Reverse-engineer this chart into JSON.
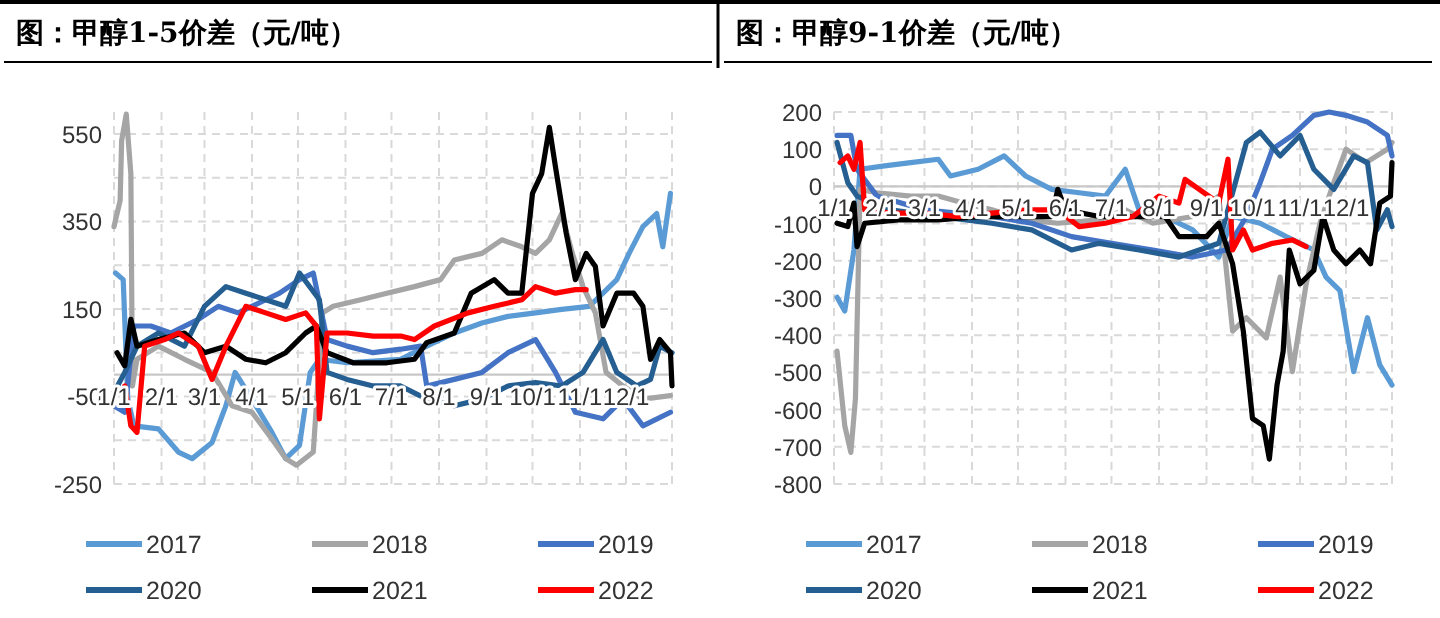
{
  "chart_data": [
    {
      "type": "line",
      "title": "图：甲醇1-5价差（元/吨）",
      "xlim": [
        "--01-01",
        "--12-31"
      ],
      "xticks": [
        {
          "value": "--01-01",
          "label": "1/1"
        },
        {
          "value": "--02-01",
          "label": "2/1"
        },
        {
          "value": "--03-01",
          "label": "3/1"
        },
        {
          "value": "--04-01",
          "label": "4/1"
        },
        {
          "value": "--05-01",
          "label": "5/1"
        },
        {
          "value": "--06-01",
          "label": "6/1"
        },
        {
          "value": "--07-01",
          "label": "7/1"
        },
        {
          "value": "--08-01",
          "label": "8/1"
        },
        {
          "value": "--09-01",
          "label": "9/1"
        },
        {
          "value": "--10-01",
          "label": "10/1"
        },
        {
          "value": "--11-01",
          "label": "11/1"
        },
        {
          "value": "--12-01",
          "label": "12/1"
        }
      ],
      "ylim": [
        -250,
        600
      ],
      "yticks": [
        -250,
        {
          "value": -150,
          "label": null
        },
        -50,
        {
          "value": 50,
          "label": null
        },
        150,
        {
          "value": 250,
          "label": null
        },
        350,
        {
          "value": 450,
          "label": null
        },
        550
      ],
      "grid": true,
      "legend": "bottom",
      "series": [
        {
          "name": "2017",
          "color": "#5b9bd5",
          "x": [
            "--01-02",
            "--01-07",
            "--01-10",
            "--01-14",
            "--01-30",
            "--02-12",
            "--02-21",
            "--03-06",
            "--03-15",
            "--03-21",
            "--04-01",
            "--04-14",
            "--04-23",
            "--05-02",
            "--05-09",
            "--05-15",
            "--06-02",
            "--07-07",
            "--07-24",
            "--08-11",
            "--08-29",
            "--09-15",
            "--10-03",
            "--10-20",
            "--11-07",
            "--11-16",
            "--11-25",
            "--12-03",
            "--12-12",
            "--12-21",
            "--12-25",
            "--12-30"
          ],
          "values": [
            232,
            217,
            -56,
            -117,
            -124,
            -177,
            -192,
            -155,
            -71,
            5,
            -56,
            -132,
            -192,
            -162,
            5,
            35,
            27,
            35,
            65,
            95,
            118,
            133,
            141,
            149,
            156,
            186,
            217,
            277,
            338,
            368,
            292,
            414
          ]
        },
        {
          "name": "2018",
          "color": "#a5a5a5",
          "x": [
            "--01-01",
            "--01-05",
            "--01-06",
            "--01-09",
            "--01-12",
            "--01-13",
            "--01-16",
            "--01-30",
            "--02-16",
            "--03-06",
            "--03-19",
            "--04-01",
            "--04-14",
            "--04-23",
            "--04-30",
            "--05-11",
            "--05-17",
            "--05-24",
            "--06-11",
            "--06-28",
            "--07-16",
            "--08-02",
            "--08-11",
            "--08-29",
            "--09-11",
            "--09-24",
            "--10-03",
            "--10-12",
            "--10-20",
            "--10-27",
            "--11-03",
            "--11-11",
            "--11-18",
            "--11-29",
            "--12-12",
            "--12-30"
          ],
          "values": [
            338,
            398,
            535,
            595,
            459,
            -26,
            35,
            65,
            35,
            5,
            -71,
            -86,
            -147,
            -192,
            -207,
            -177,
            141,
            156,
            171,
            186,
            201,
            217,
            262,
            277,
            308,
            292,
            277,
            308,
            368,
            277,
            201,
            141,
            5,
            -26,
            -56,
            -48
          ]
        },
        {
          "name": "2019",
          "color": "#4472c4",
          "x": [
            "--01-01",
            "--01-08",
            "--01-14",
            "--01-25",
            "--02-07",
            "--02-25",
            "--03-10",
            "--03-23",
            "--04-10",
            "--04-19",
            "--05-02",
            "--05-11",
            "--05-20",
            "--06-02",
            "--06-19",
            "--07-07",
            "--07-20",
            "--07-24",
            "--08-11",
            "--08-29",
            "--09-15",
            "--10-03",
            "--10-16",
            "--10-29",
            "--11-16",
            "--11-29",
            "--12-12",
            "--12-30"
          ],
          "values": [
            -71,
            -86,
            111,
            111,
            95,
            126,
            156,
            141,
            171,
            186,
            217,
            232,
            80,
            65,
            50,
            58,
            65,
            -26,
            -11,
            5,
            50,
            80,
            5,
            -86,
            -101,
            -56,
            -117,
            -86
          ]
        },
        {
          "name": "2020",
          "color": "#255e91",
          "x": [
            "--01-01",
            "--01-08",
            "--01-16",
            "--01-30",
            "--02-16",
            "--03-01",
            "--03-15",
            "--03-28",
            "--04-10",
            "--04-23",
            "--05-02",
            "--05-15",
            "--05-20",
            "--06-02",
            "--06-19",
            "--07-07",
            "--07-24",
            "--08-11",
            "--08-29",
            "--09-15",
            "--10-03",
            "--10-20",
            "--11-03",
            "--11-16",
            "--11-25",
            "--12-08",
            "--12-17",
            "--12-23",
            "--12-31"
          ],
          "values": [
            -41,
            5,
            65,
            95,
            65,
            156,
            201,
            186,
            171,
            156,
            232,
            171,
            5,
            -11,
            -26,
            -26,
            -56,
            -71,
            -56,
            -26,
            -18,
            -26,
            5,
            80,
            5,
            -26,
            -11,
            65,
            50
          ]
        },
        {
          "name": "2021",
          "color": "#000000",
          "x": [
            "--01-03",
            "--01-08",
            "--01-12",
            "--01-16",
            "--01-30",
            "--02-16",
            "--03-01",
            "--03-15",
            "--03-28",
            "--04-10",
            "--04-23",
            "--05-06",
            "--05-13",
            "--05-20",
            "--06-06",
            "--06-28",
            "--07-16",
            "--07-24",
            "--08-11",
            "--08-22",
            "--09-06",
            "--09-15",
            "--09-24",
            "--10-01",
            "--10-07",
            "--10-12",
            "--10-16",
            "--10-23",
            "--10-29",
            "--11-05",
            "--11-11",
            "--11-16",
            "--11-25",
            "--12-06",
            "--12-12",
            "--12-17",
            "--12-23",
            "--12-30",
            "--12-31"
          ],
          "values": [
            50,
            20,
            126,
            65,
            80,
            95,
            50,
            65,
            35,
            27,
            50,
            95,
            111,
            50,
            27,
            27,
            35,
            73,
            95,
            186,
            217,
            186,
            186,
            414,
            459,
            565,
            474,
            323,
            217,
            277,
            247,
            111,
            186,
            186,
            156,
            35,
            80,
            50,
            -26
          ]
        },
        {
          "name": "2022",
          "color": "#ff0000",
          "x": [
            "--01-08",
            "--01-12",
            "--01-16",
            "--01-21",
            "--02-03",
            "--02-12",
            "--02-25",
            "--03-06",
            "--03-15",
            "--03-28",
            "--04-10",
            "--04-23",
            "--05-06",
            "--05-13",
            "--05-15",
            "--05-20",
            "--06-02",
            "--06-19",
            "--07-07",
            "--07-16",
            "--07-29",
            "--08-20",
            "--09-06",
            "--09-24",
            "--10-03",
            "--10-16",
            "--10-29",
            "--11-05"
          ],
          "values": [
            -26,
            -117,
            -132,
            65,
            80,
            95,
            65,
            -11,
            65,
            156,
            141,
            126,
            141,
            111,
            -101,
            95,
            95,
            88,
            88,
            80,
            111,
            141,
            156,
            171,
            201,
            186,
            194,
            194
          ]
        }
      ]
    },
    {
      "type": "line",
      "title": "图：甲醇9-1价差（元/吨）",
      "xlim": [
        "--01-01",
        "--12-31"
      ],
      "xticks": [
        {
          "value": "--01-01",
          "label": "1/1"
        },
        {
          "value": "--02-01",
          "label": "2/1"
        },
        {
          "value": "--03-01",
          "label": "3/1"
        },
        {
          "value": "--04-01",
          "label": "4/1"
        },
        {
          "value": "--05-01",
          "label": "5/1"
        },
        {
          "value": "--06-01",
          "label": "6/1"
        },
        {
          "value": "--07-01",
          "label": "7/1"
        },
        {
          "value": "--08-01",
          "label": "8/1"
        },
        {
          "value": "--09-01",
          "label": "9/1"
        },
        {
          "value": "--10-01",
          "label": "10/1"
        },
        {
          "value": "--11-01",
          "label": "11/1"
        },
        {
          "value": "--12-01",
          "label": "12/1"
        }
      ],
      "ylim": [
        -800,
        200
      ],
      "yticks": [
        -800,
        -700,
        -600,
        -500,
        -400,
        -300,
        -200,
        -100,
        0,
        100,
        200
      ],
      "grid": true,
      "legend": "bottom",
      "series": [
        {
          "name": "2017",
          "color": "#5b9bd5",
          "x": [
            "--01-03",
            "--01-08",
            "--01-14",
            "--01-18",
            "--02-03",
            "--02-20",
            "--03-10",
            "--03-18",
            "--04-05",
            "--04-22",
            "--05-06",
            "--05-23",
            "--06-10",
            "--06-27",
            "--07-10",
            "--07-19",
            "--08-05",
            "--08-23",
            "--09-09",
            "--09-18",
            "--10-06",
            "--10-23",
            "--11-10",
            "--11-18",
            "--11-27",
            "--12-06",
            "--12-15",
            "--12-23",
            "--12-31"
          ],
          "values": [
            -298,
            -335,
            -171,
            46,
            55,
            64,
            73,
            28,
            46,
            82,
            28,
            -8,
            -17,
            -26,
            46,
            -63,
            -81,
            -117,
            -190,
            -81,
            -99,
            -135,
            -171,
            -244,
            -280,
            -498,
            -353,
            -480,
            -534
          ]
        },
        {
          "name": "2018",
          "color": "#a5a5a5",
          "x": [
            "--01-03",
            "--01-08",
            "--01-12",
            "--01-15",
            "--01-18",
            "--01-29",
            "--02-20",
            "--03-10",
            "--03-27",
            "--04-14",
            "--05-06",
            "--05-27",
            "--06-23",
            "--07-10",
            "--07-28",
            "--08-23",
            "--09-09",
            "--09-18",
            "--09-27",
            "--10-10",
            "--10-19",
            "--10-27",
            "--11-05",
            "--11-14",
            "--11-23",
            "--12-01",
            "--12-14",
            "--12-28",
            "--12-31"
          ],
          "values": [
            -443,
            -643,
            -715,
            -570,
            -8,
            -17,
            -26,
            -26,
            -45,
            -63,
            -90,
            -99,
            -90,
            -63,
            -99,
            -81,
            -26,
            -389,
            -353,
            -407,
            -244,
            -498,
            -262,
            -99,
            10,
            100,
            64,
            100,
            118
          ]
        },
        {
          "name": "2019",
          "color": "#4472c4",
          "x": [
            "--01-03",
            "--01-12",
            "--01-16",
            "--01-29",
            "--03-01",
            "--04-14",
            "--05-10",
            "--06-05",
            "--07-01",
            "--07-28",
            "--08-23",
            "--09-14",
            "--09-27",
            "--10-06",
            "--10-14",
            "--10-27",
            "--11-10",
            "--11-20",
            "--12-01",
            "--12-15",
            "--12-28",
            "--12-31"
          ],
          "values": [
            137,
            137,
            46,
            -26,
            -63,
            -81,
            -99,
            -135,
            -153,
            -171,
            -190,
            -171,
            -81,
            10,
            100,
            137,
            191,
            200,
            191,
            173,
            137,
            82
          ]
        },
        {
          "name": "2020",
          "color": "#255e91",
          "x": [
            "--01-03",
            "--01-10",
            "--01-16",
            "--02-07",
            "--03-10",
            "--04-14",
            "--05-10",
            "--06-05",
            "--06-23",
            "--07-19",
            "--08-14",
            "--09-09",
            "--09-27",
            "--10-06",
            "--10-19",
            "--11-01",
            "--11-10",
            "--11-23",
            "--12-06",
            "--12-15",
            "--12-21",
            "--12-28",
            "--12-31"
          ],
          "values": [
            118,
            10,
            -26,
            -63,
            -81,
            -99,
            -117,
            -171,
            -153,
            -171,
            -190,
            -153,
            118,
            146,
            82,
            137,
            46,
            -8,
            82,
            64,
            -117,
            -63,
            -108
          ]
        },
        {
          "name": "2021",
          "color": "#000000",
          "x": [
            "--01-03",
            "--01-10",
            "--01-14",
            "--01-16",
            "--01-21",
            "--02-12",
            "--03-10",
            "--04-05",
            "--05-01",
            "--05-23",
            "--05-27",
            "--06-01",
            "--06-23",
            "--07-19",
            "--08-05",
            "--08-14",
            "--09-01",
            "--09-09",
            "--09-18",
            "--09-25",
            "--10-01",
            "--10-08",
            "--10-12",
            "--10-17",
            "--10-21",
            "--10-25",
            "--11-01",
            "--11-10",
            "--11-16",
            "--11-23",
            "--12-01",
            "--12-10",
            "--12-17",
            "--12-23",
            "--12-30",
            "--12-31"
          ],
          "values": [
            -99,
            -108,
            -45,
            -162,
            -99,
            -90,
            -90,
            -81,
            -81,
            -81,
            -8,
            -63,
            -81,
            -81,
            -81,
            -135,
            -135,
            -99,
            -208,
            -389,
            -624,
            -643,
            -733,
            -534,
            -443,
            -171,
            -262,
            -226,
            -81,
            -171,
            -208,
            -171,
            -208,
            -45,
            -26,
            64
          ]
        },
        {
          "name": "2022",
          "color": "#ff0000",
          "x": [
            "--01-05",
            "--01-10",
            "--01-14",
            "--01-18",
            "--01-21",
            "--02-07",
            "--03-01",
            "--03-23",
            "--04-14",
            "--05-06",
            "--05-27",
            "--06-10",
            "--06-27",
            "--07-15",
            "--08-01",
            "--08-14",
            "--08-18",
            "--09-09",
            "--09-15",
            "--09-18",
            "--09-25",
            "--10-01",
            "--10-14",
            "--10-27",
            "--11-05"
          ],
          "values": [
            64,
            82,
            46,
            118,
            -63,
            -72,
            -72,
            -81,
            -72,
            -63,
            -63,
            -108,
            -99,
            -81,
            -26,
            -45,
            19,
            -45,
            73,
            -171,
            -117,
            -171,
            -153,
            -144,
            -162
          ]
        }
      ]
    }
  ]
}
